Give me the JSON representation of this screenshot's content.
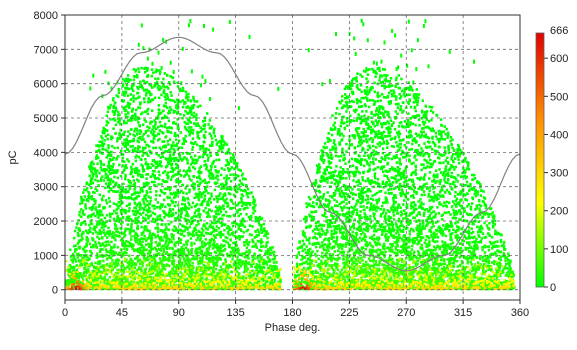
{
  "chart_data": {
    "type": "heatmap",
    "title": "",
    "xlabel": "Phase deg.",
    "ylabel": "pC",
    "xlim": [
      0,
      360
    ],
    "ylim": [
      -300,
      8000
    ],
    "x_ticks": [
      0,
      45,
      90,
      135,
      180,
      225,
      270,
      315,
      360
    ],
    "y_ticks": [
      0,
      1000,
      2000,
      3000,
      4000,
      5000,
      6000,
      7000,
      8000
    ],
    "grid": true,
    "colorbar": {
      "min": 0,
      "max": 666,
      "ticks": [
        0,
        100,
        200,
        300,
        400,
        500,
        600
      ],
      "max_label": "666",
      "colors": [
        "#00ff00",
        "#ffff00",
        "#ff8c00",
        "#e00000"
      ]
    },
    "reference_sine": {
      "x": [
        0,
        30,
        60,
        90,
        120,
        150,
        180,
        210,
        240,
        270,
        300,
        330,
        360
      ],
      "y": [
        3950,
        5650,
        6900,
        7350,
        6900,
        5650,
        3950,
        2250,
        1000,
        550,
        1000,
        2250,
        3950
      ],
      "color": "#808080"
    },
    "density_clusters": [
      {
        "phase_range": [
          0,
          170
        ],
        "peak_phase": 60,
        "max_pC": 7900,
        "dense_core_max_pC": 1000,
        "peak_count_phase": 8,
        "peak_count": 666
      },
      {
        "phase_range": [
          180,
          355
        ],
        "peak_phase": 240,
        "max_pC": 7900,
        "dense_core_max_pC": 1000,
        "peak_count_phase": 188,
        "peak_count": 666
      }
    ]
  }
}
